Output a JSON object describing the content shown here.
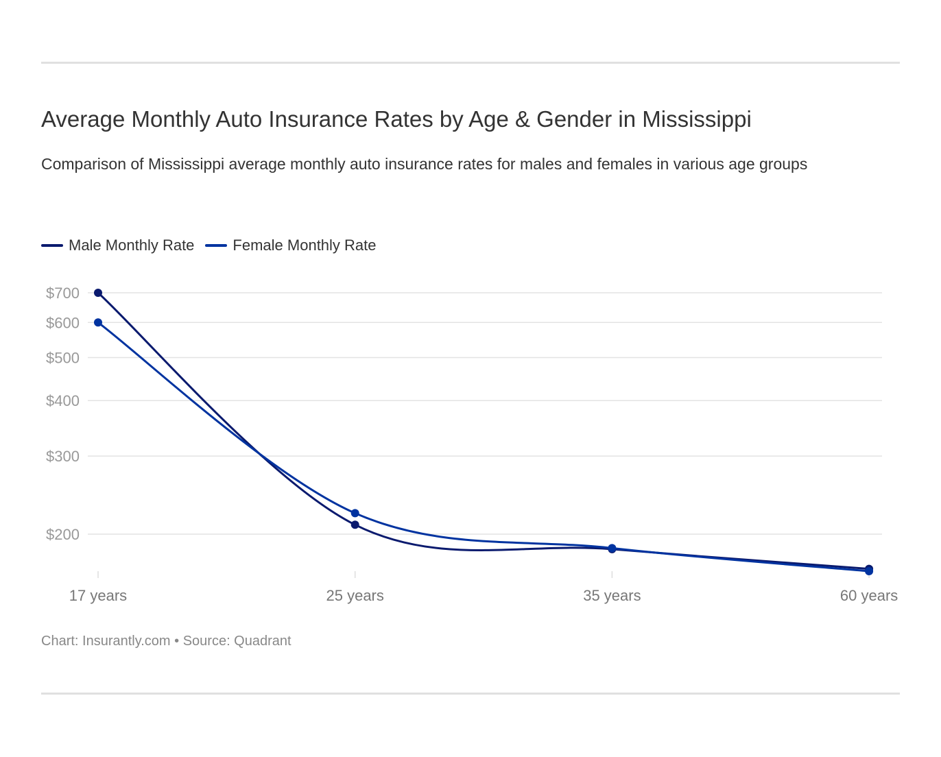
{
  "title": "Average Monthly Auto Insurance Rates by Age & Gender in Mississippi",
  "subtitle": "Comparison of Mississippi average monthly auto insurance rates for males and females in various age groups",
  "footer": "Chart: Insurantly.com • Source: Quadrant",
  "chart_data": {
    "type": "line",
    "title": "Average Monthly Auto Insurance Rates by Age & Gender in Mississippi",
    "categories": [
      "17 years",
      "25 years",
      "35 years",
      "60 years"
    ],
    "y_scale": "log",
    "y_ticks": [
      200,
      300,
      400,
      500,
      600,
      700
    ],
    "y_tick_labels": [
      "$200",
      "$300",
      "$400",
      "$500",
      "$600",
      "$700"
    ],
    "grid": true,
    "legend_position": "top-left",
    "series": [
      {
        "name": "Male Monthly Rate",
        "color": "#0a1a6e",
        "values": [
          700,
          210,
          185,
          167
        ]
      },
      {
        "name": "Female Monthly Rate",
        "color": "#0033a0",
        "values": [
          600,
          223,
          186,
          165
        ]
      }
    ]
  }
}
